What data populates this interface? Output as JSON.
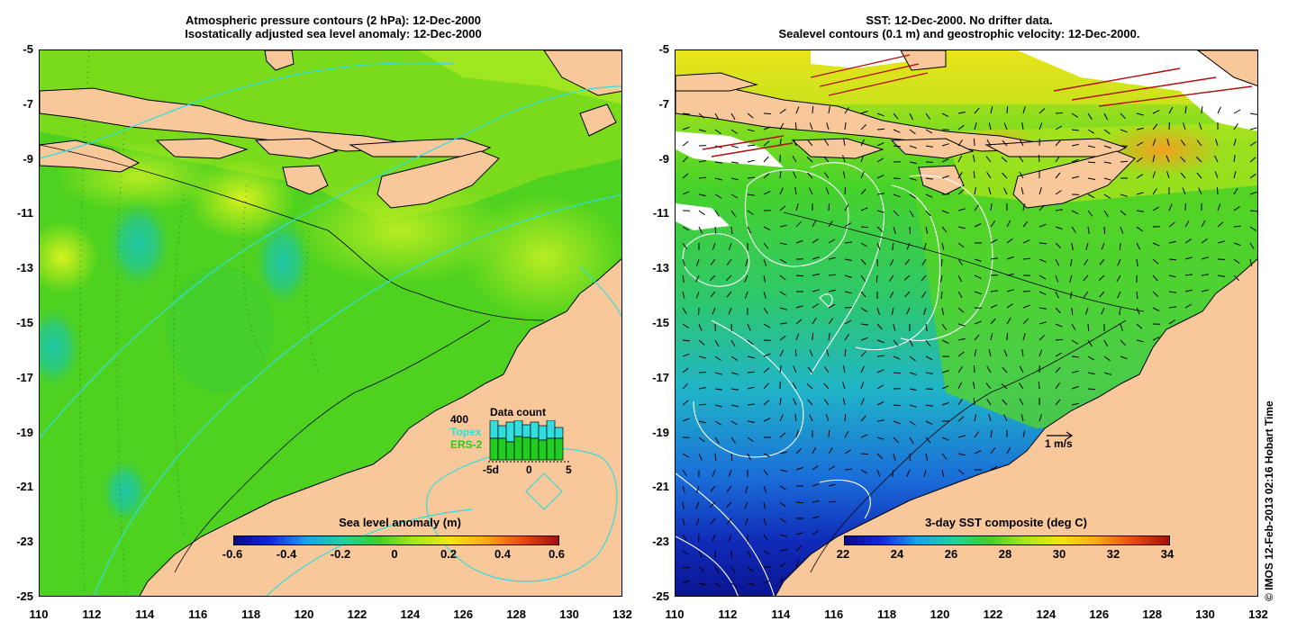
{
  "left_panel": {
    "title_line1": "Atmospheric pressure contours (2 hPa): 12-Dec-2000",
    "title_line2": "Isostatically adjusted sea level anomaly: 12-Dec-2000",
    "colorbar": {
      "label": "Sea level anomaly (m)",
      "ticks": [
        "-0.6",
        "-0.4",
        "-0.2",
        "0",
        "0.2",
        "0.4",
        "0.6"
      ]
    },
    "data_count": {
      "title": "Data count",
      "max_label": "400",
      "series1": "Topex",
      "series2": "ERS-2",
      "x_ticks": [
        "-5d",
        "0",
        "5"
      ],
      "topex_color": "#33dddd",
      "ers2_color": "#22cc22"
    }
  },
  "right_panel": {
    "title_line1": "SST: 12-Dec-2000. No drifter data.",
    "title_line2": "Sealevel contours (0.1 m) and geostrophic velocity: 12-Dec-2000.",
    "colorbar": {
      "label": "3-day SST composite (deg C)",
      "ticks": [
        "22",
        "24",
        "26",
        "28",
        "30",
        "32",
        "34"
      ]
    },
    "velocity_scale_label": "1 m/s"
  },
  "axes": {
    "y_ticks": [
      "-5",
      "-7",
      "-9",
      "-11",
      "-13",
      "-15",
      "-17",
      "-19",
      "-21",
      "-23",
      "-25"
    ],
    "x_ticks": [
      "110",
      "112",
      "114",
      "116",
      "118",
      "120",
      "122",
      "124",
      "126",
      "128",
      "130",
      "132"
    ]
  },
  "credit": "© IMOS 12-Feb-2013 02:16 Hobart Time",
  "colors": {
    "land": "#f9c89a",
    "ocean_green": "#4fd21f",
    "coast": "#000000",
    "pressure_contour": "#33dddd",
    "sst_contour": "#ffffff",
    "arrow": "#000000"
  }
}
